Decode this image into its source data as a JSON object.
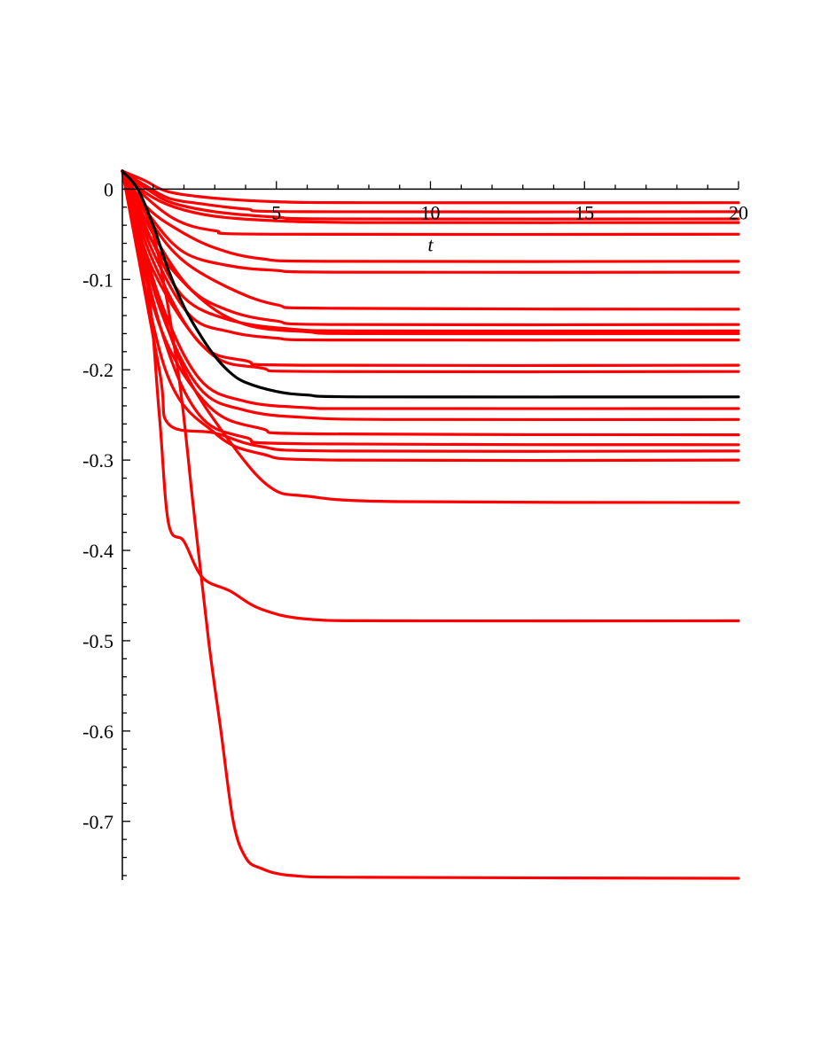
{
  "chart_data": {
    "type": "line",
    "title": "",
    "xlabel": "t",
    "ylabel": "",
    "xlim": [
      0,
      20
    ],
    "ylim": [
      -0.765,
      0.02
    ],
    "x_ticks": [
      "5",
      "10",
      "15",
      "20"
    ],
    "y_ticks": [
      "0",
      "-0.1",
      "-0.2",
      "-0.3",
      "-0.4",
      "-0.5",
      "-0.6",
      "-0.7"
    ],
    "x_tick_values": [
      5,
      10,
      15,
      20
    ],
    "y_tick_values": [
      0,
      -0.1,
      -0.2,
      -0.3,
      -0.4,
      -0.5,
      -0.6,
      -0.7
    ],
    "grid": false,
    "legend": "none",
    "colors": {
      "series": "#ff0000",
      "mean": "#000000"
    },
    "series": [
      {
        "color": "#ff0000",
        "final": -0.015,
        "points": [
          [
            0,
            0.02
          ],
          [
            0.7,
            0.01
          ],
          [
            1.5,
            -0.003
          ],
          [
            3,
            -0.01
          ],
          [
            5,
            -0.014
          ],
          [
            8,
            -0.015
          ],
          [
            20,
            -0.015
          ]
        ]
      },
      {
        "color": "#ff0000",
        "final": -0.025,
        "points": [
          [
            0,
            0.02
          ],
          [
            0.7,
            0.005
          ],
          [
            1.5,
            -0.01
          ],
          [
            2.5,
            -0.016
          ],
          [
            4,
            -0.022
          ],
          [
            6,
            -0.025
          ],
          [
            20,
            -0.025
          ]
        ]
      },
      {
        "color": "#ff0000",
        "final": -0.033,
        "points": [
          [
            0,
            0.02
          ],
          [
            0.8,
            0.0
          ],
          [
            1.6,
            -0.015
          ],
          [
            3,
            -0.025
          ],
          [
            5,
            -0.031
          ],
          [
            7,
            -0.033
          ],
          [
            20,
            -0.033
          ]
        ]
      },
      {
        "color": "#ff0000",
        "final": -0.037,
        "points": [
          [
            0,
            0.02
          ],
          [
            0.8,
            -0.005
          ],
          [
            1.7,
            -0.02
          ],
          [
            3,
            -0.03
          ],
          [
            5,
            -0.035
          ],
          [
            8,
            -0.037
          ],
          [
            20,
            -0.037
          ]
        ]
      },
      {
        "color": "#ff0000",
        "final": -0.05,
        "points": [
          [
            0,
            0.02
          ],
          [
            0.8,
            -0.01
          ],
          [
            1.8,
            -0.035
          ],
          [
            3,
            -0.046
          ],
          [
            5,
            -0.05
          ],
          [
            20,
            -0.05
          ]
        ]
      },
      {
        "color": "#ff0000",
        "final": -0.08,
        "points": [
          [
            0,
            0.02
          ],
          [
            0.8,
            -0.02
          ],
          [
            1.8,
            -0.045
          ],
          [
            3,
            -0.065
          ],
          [
            4.5,
            -0.077
          ],
          [
            7,
            -0.08
          ],
          [
            20,
            -0.08
          ]
        ]
      },
      {
        "color": "#ff0000",
        "final": -0.092,
        "points": [
          [
            0,
            0.02
          ],
          [
            0.9,
            -0.03
          ],
          [
            2,
            -0.07
          ],
          [
            3.5,
            -0.085
          ],
          [
            5,
            -0.09
          ],
          [
            7,
            -0.092
          ],
          [
            20,
            -0.092
          ]
        ]
      },
      {
        "color": "#ff0000",
        "final": -0.133,
        "points": [
          [
            0,
            0.02
          ],
          [
            1,
            -0.04
          ],
          [
            2,
            -0.08
          ],
          [
            3.5,
            -0.11
          ],
          [
            5,
            -0.128
          ],
          [
            7,
            -0.132
          ],
          [
            20,
            -0.133
          ]
        ]
      },
      {
        "color": "#ff0000",
        "final": -0.15,
        "points": [
          [
            0,
            0.02
          ],
          [
            1,
            -0.05
          ],
          [
            2.2,
            -0.11
          ],
          [
            3.5,
            -0.135
          ],
          [
            5,
            -0.146
          ],
          [
            7,
            -0.15
          ],
          [
            20,
            -0.15
          ]
        ]
      },
      {
        "color": "#ff0000",
        "final": -0.157,
        "points": [
          [
            0,
            0.02
          ],
          [
            1,
            -0.06
          ],
          [
            2,
            -0.12
          ],
          [
            3.5,
            -0.145
          ],
          [
            5.5,
            -0.155
          ],
          [
            8,
            -0.157
          ],
          [
            20,
            -0.157
          ]
        ]
      },
      {
        "color": "#ff0000",
        "final": -0.16,
        "points": [
          [
            0,
            0.02
          ],
          [
            1,
            -0.06
          ],
          [
            2.5,
            -0.12
          ],
          [
            4,
            -0.15
          ],
          [
            6,
            -0.158
          ],
          [
            8,
            -0.16
          ],
          [
            20,
            -0.16
          ]
        ]
      },
      {
        "color": "#ff0000",
        "final": -0.167,
        "points": [
          [
            0,
            0.02
          ],
          [
            1,
            -0.07
          ],
          [
            2.2,
            -0.14
          ],
          [
            3.5,
            -0.158
          ],
          [
            5,
            -0.165
          ],
          [
            7,
            -0.167
          ],
          [
            20,
            -0.167
          ]
        ]
      },
      {
        "color": "#ff0000",
        "final": -0.195,
        "points": [
          [
            0,
            0.02
          ],
          [
            1,
            -0.08
          ],
          [
            2.5,
            -0.17
          ],
          [
            4,
            -0.19
          ],
          [
            6,
            -0.195
          ],
          [
            20,
            -0.195
          ]
        ]
      },
      {
        "color": "#ff0000",
        "final": -0.202,
        "points": [
          [
            0,
            0.02
          ],
          [
            1,
            -0.09
          ],
          [
            2.8,
            -0.18
          ],
          [
            4.5,
            -0.198
          ],
          [
            6.5,
            -0.202
          ],
          [
            20,
            -0.202
          ]
        ]
      },
      {
        "color": "#ff0000",
        "final": -0.243,
        "points": [
          [
            0,
            0.02
          ],
          [
            1.2,
            -0.12
          ],
          [
            2.5,
            -0.21
          ],
          [
            4,
            -0.235
          ],
          [
            6,
            -0.242
          ],
          [
            8,
            -0.243
          ],
          [
            20,
            -0.243
          ]
        ]
      },
      {
        "color": "#ff0000",
        "final": -0.255,
        "points": [
          [
            0,
            0.02
          ],
          [
            1.2,
            -0.13
          ],
          [
            2.5,
            -0.22
          ],
          [
            4,
            -0.245
          ],
          [
            6,
            -0.253
          ],
          [
            9,
            -0.255
          ],
          [
            20,
            -0.255
          ]
        ]
      },
      {
        "color": "#ff0000",
        "final": -0.272,
        "points": [
          [
            0,
            0.02
          ],
          [
            1.2,
            -0.15
          ],
          [
            2.8,
            -0.24
          ],
          [
            4.5,
            -0.265
          ],
          [
            6.5,
            -0.271
          ],
          [
            20,
            -0.272
          ]
        ]
      },
      {
        "color": "#ff0000",
        "final": -0.283,
        "points": [
          [
            0,
            0.02
          ],
          [
            1.3,
            -0.16
          ],
          [
            2.5,
            -0.25
          ],
          [
            4,
            -0.275
          ],
          [
            6,
            -0.282
          ],
          [
            20,
            -0.283
          ]
        ]
      },
      {
        "color": "#ff0000",
        "final": -0.29,
        "points": [
          [
            0,
            0.02
          ],
          [
            1.2,
            -0.2
          ],
          [
            1.5,
            -0.26
          ],
          [
            3,
            -0.27
          ],
          [
            4.5,
            -0.285
          ],
          [
            7,
            -0.29
          ],
          [
            20,
            -0.29
          ]
        ]
      },
      {
        "color": "#ff0000",
        "final": -0.3,
        "points": [
          [
            0,
            0.02
          ],
          [
            1.4,
            -0.2
          ],
          [
            3,
            -0.27
          ],
          [
            4.5,
            -0.293
          ],
          [
            7,
            -0.3
          ],
          [
            20,
            -0.3
          ]
        ]
      },
      {
        "color": "#ff0000",
        "final": -0.347,
        "points": [
          [
            0,
            0.02
          ],
          [
            1,
            -0.1
          ],
          [
            2,
            -0.2
          ],
          [
            3.5,
            -0.28
          ],
          [
            4.8,
            -0.33
          ],
          [
            6,
            -0.34
          ],
          [
            9,
            -0.346
          ],
          [
            20,
            -0.347
          ]
        ]
      },
      {
        "color": "#ff0000",
        "final": -0.478,
        "points": [
          [
            0,
            0.02
          ],
          [
            0.8,
            -0.1
          ],
          [
            1.2,
            -0.25
          ],
          [
            1.5,
            -0.37
          ],
          [
            2,
            -0.39
          ],
          [
            2.6,
            -0.43
          ],
          [
            3.5,
            -0.445
          ],
          [
            4.5,
            -0.465
          ],
          [
            6,
            -0.476
          ],
          [
            9,
            -0.478
          ],
          [
            20,
            -0.478
          ]
        ]
      },
      {
        "color": "#ff0000",
        "final": -0.763,
        "points": [
          [
            0,
            0.02
          ],
          [
            1,
            -0.05
          ],
          [
            1.8,
            -0.2
          ],
          [
            2.3,
            -0.35
          ],
          [
            2.8,
            -0.5
          ],
          [
            3.2,
            -0.6
          ],
          [
            3.6,
            -0.7
          ],
          [
            4,
            -0.74
          ],
          [
            4.5,
            -0.752
          ],
          [
            5.5,
            -0.76
          ],
          [
            8,
            -0.762
          ],
          [
            20,
            -0.763
          ]
        ]
      }
    ],
    "mean": {
      "color": "#000000",
      "final": -0.23,
      "points": [
        [
          0,
          0.02
        ],
        [
          0.5,
          0.0
        ],
        [
          1,
          -0.04
        ],
        [
          1.5,
          -0.09
        ],
        [
          2,
          -0.13
        ],
        [
          2.5,
          -0.16
        ],
        [
          3,
          -0.185
        ],
        [
          3.5,
          -0.203
        ],
        [
          4,
          -0.214
        ],
        [
          5,
          -0.224
        ],
        [
          6,
          -0.228
        ],
        [
          8,
          -0.23
        ],
        [
          20,
          -0.23
        ]
      ]
    }
  }
}
